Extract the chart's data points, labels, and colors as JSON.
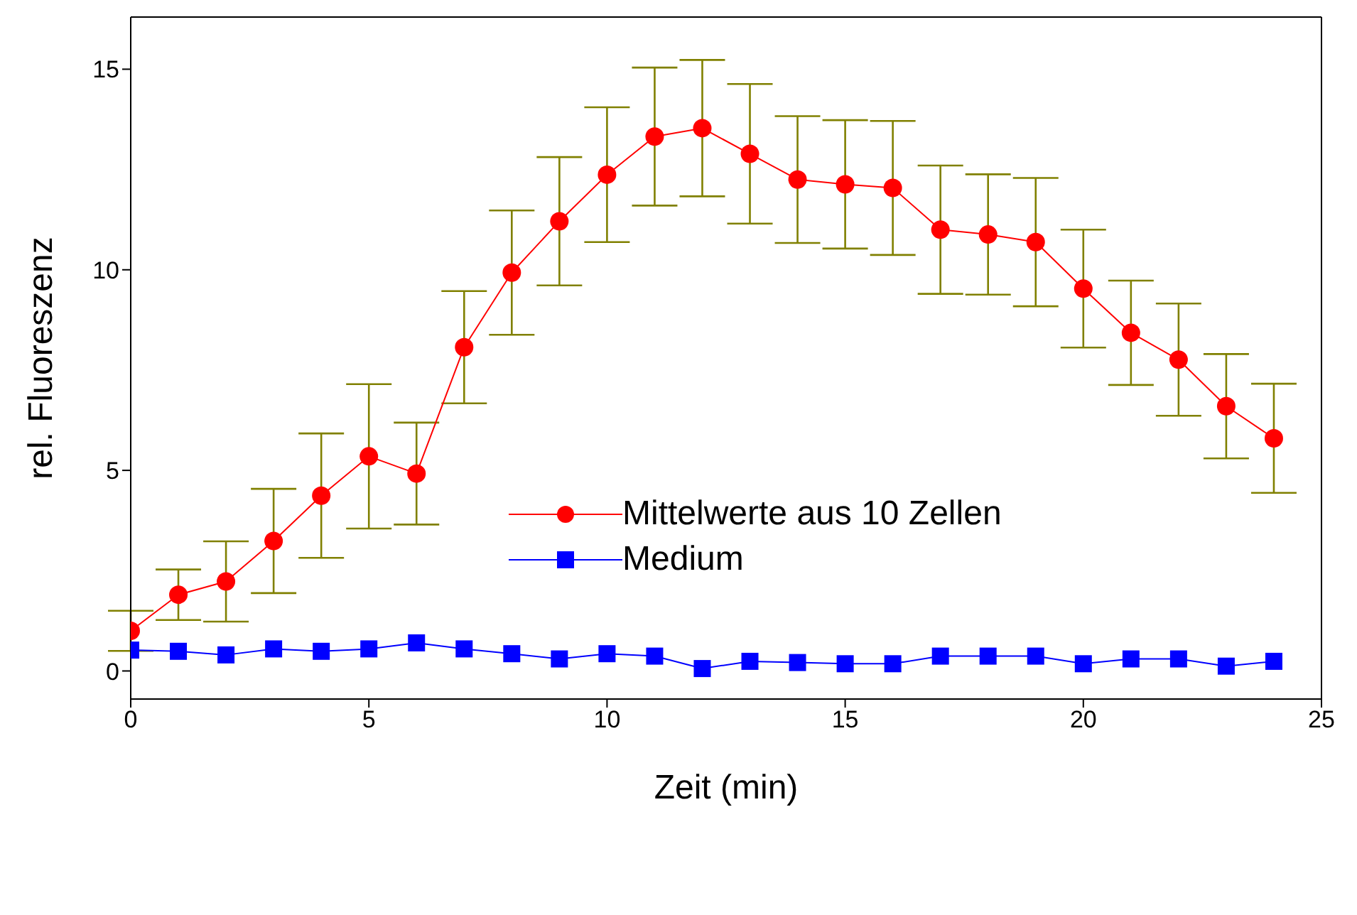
{
  "chart_data": {
    "type": "line",
    "xlabel": "Zeit (min)",
    "ylabel": "rel. Fluoreszenz",
    "x": [
      0,
      1,
      2,
      3,
      4,
      5,
      6,
      7,
      8,
      9,
      10,
      11,
      12,
      13,
      14,
      15,
      16,
      17,
      18,
      19,
      20,
      21,
      22,
      23,
      24
    ],
    "xlim": [
      0,
      25
    ],
    "xticks": [
      0,
      5,
      10,
      15,
      20,
      25
    ],
    "ylim": [
      -0.7,
      16.3
    ],
    "yticks": [
      0,
      5,
      10,
      15
    ],
    "legend": "center",
    "series": [
      {
        "name": "Mittelwerte aus 10 Zellen",
        "color": "#ff0000",
        "marker": "circle",
        "values": [
          1.0,
          1.9,
          2.23,
          3.24,
          4.37,
          5.35,
          4.92,
          8.07,
          9.93,
          11.21,
          12.37,
          13.32,
          13.53,
          12.89,
          12.25,
          12.13,
          12.04,
          11.0,
          10.88,
          10.69,
          9.53,
          8.43,
          7.76,
          6.6,
          5.8
        ],
        "errors": [
          0.5,
          0.63,
          1.0,
          1.3,
          1.55,
          1.8,
          1.27,
          1.4,
          1.55,
          1.6,
          1.68,
          1.72,
          1.7,
          1.74,
          1.58,
          1.6,
          1.67,
          1.6,
          1.5,
          1.6,
          1.47,
          1.3,
          1.4,
          1.3,
          1.36
        ]
      },
      {
        "name": "Medium",
        "color": "#0000ff",
        "marker": "square",
        "values": [
          0.52,
          0.49,
          0.4,
          0.55,
          0.49,
          0.55,
          0.7,
          0.55,
          0.43,
          0.3,
          0.43,
          0.37,
          0.06,
          0.24,
          0.21,
          0.18,
          0.18,
          0.37,
          0.37,
          0.37,
          0.18,
          0.3,
          0.3,
          0.12,
          0.24
        ]
      }
    ]
  }
}
